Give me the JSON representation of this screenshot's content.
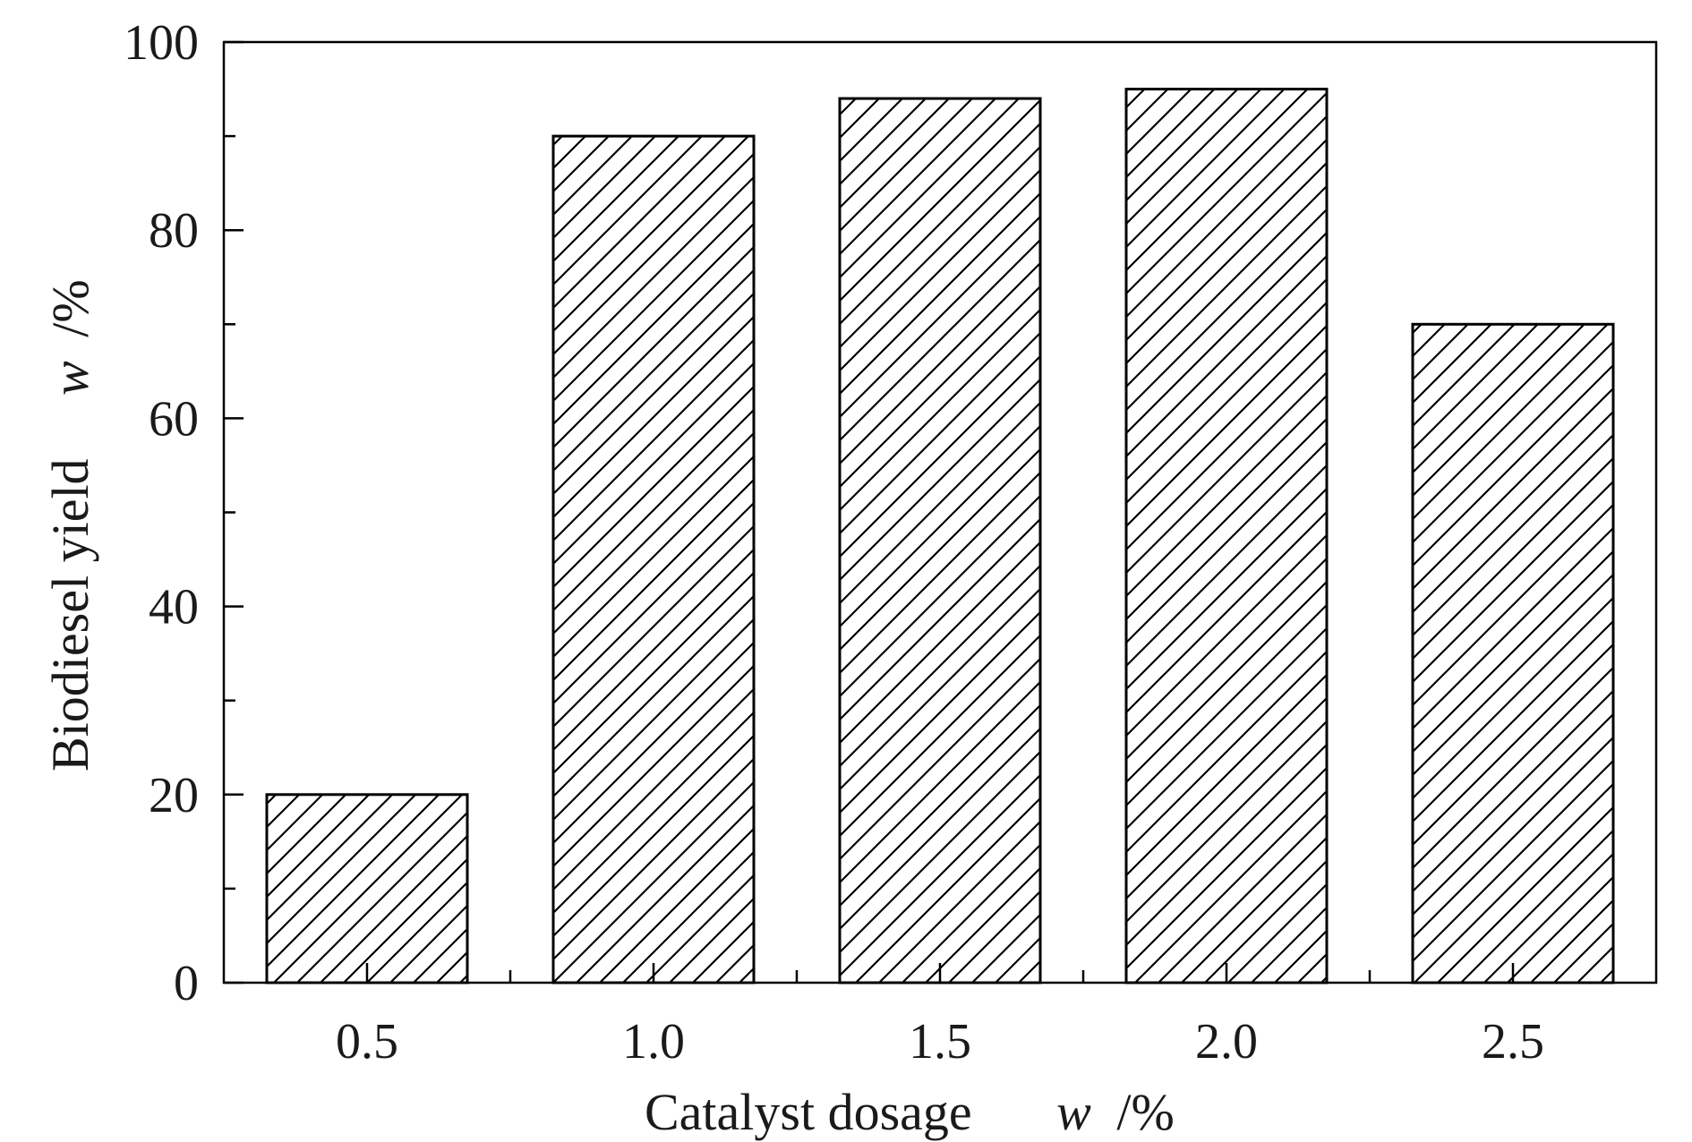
{
  "chart_data": {
    "type": "bar",
    "categories": [
      "0.5",
      "1.0",
      "1.5",
      "2.0",
      "2.5"
    ],
    "values": [
      20,
      90,
      94,
      95,
      70
    ],
    "xlabel": "Catalyst dosage",
    "xlabel_unit_var": "w",
    "xlabel_unit": "/%",
    "ylabel": "Biodiesel yield",
    "ylabel_unit_var": "w",
    "ylabel_unit": "/%",
    "ylim": [
      0,
      100
    ],
    "yticks": [
      "0",
      "20",
      "40",
      "60",
      "80",
      "100"
    ],
    "bar_fill_pattern": "diagonal-hatch",
    "bar_color": "#000000",
    "background": "#ffffff",
    "grid": false,
    "legend": "none"
  }
}
